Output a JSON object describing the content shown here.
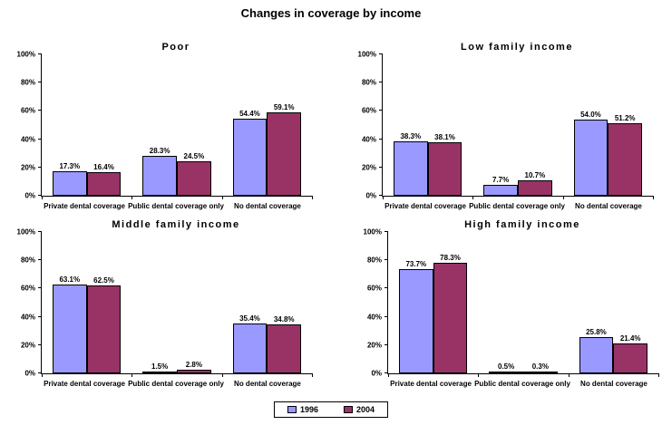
{
  "page_title": "Changes in coverage by income",
  "legend": {
    "items": [
      {
        "label": "1996",
        "color": "#9999FF"
      },
      {
        "label": "2004",
        "color": "#993366"
      }
    ]
  },
  "y_axis": {
    "tick_labels": [
      "0%",
      "20%",
      "40%",
      "60%",
      "80%",
      "100%"
    ],
    "min": 0,
    "max": 100,
    "step": 20
  },
  "chart_data": [
    {
      "type": "bar",
      "title": "Poor",
      "categories": [
        "Private dental coverage",
        "Public dental coverage only",
        "No dental coverage"
      ],
      "series": [
        {
          "name": "1996",
          "color": "#9999FF",
          "values": [
            17.3,
            28.3,
            54.4
          ]
        },
        {
          "name": "2004",
          "color": "#993366",
          "values": [
            16.4,
            24.5,
            59.1
          ]
        }
      ],
      "ylim": [
        0,
        100
      ],
      "grid": false,
      "legend_position": "bottom-shared"
    },
    {
      "type": "bar",
      "title": "Low family income",
      "categories": [
        "Private dental coverage",
        "Public dental coverage only",
        "No dental coverage"
      ],
      "series": [
        {
          "name": "1996",
          "color": "#9999FF",
          "values": [
            38.3,
            7.7,
            54.0
          ]
        },
        {
          "name": "2004",
          "color": "#993366",
          "values": [
            38.1,
            10.7,
            51.2
          ]
        }
      ],
      "ylim": [
        0,
        100
      ],
      "grid": false,
      "legend_position": "bottom-shared"
    },
    {
      "type": "bar",
      "title": "Middle family income",
      "categories": [
        "Private dental coverage",
        "Public dental coverage only",
        "No dental coverage"
      ],
      "series": [
        {
          "name": "1996",
          "color": "#9999FF",
          "values": [
            63.1,
            1.5,
            35.4
          ]
        },
        {
          "name": "2004",
          "color": "#993366",
          "values": [
            62.5,
            2.8,
            34.8
          ]
        }
      ],
      "ylim": [
        0,
        100
      ],
      "grid": false,
      "legend_position": "bottom-shared"
    },
    {
      "type": "bar",
      "title": "High family income",
      "categories": [
        "Private dental coverage",
        "Public dental coverage only",
        "No dental coverage"
      ],
      "series": [
        {
          "name": "1996",
          "color": "#9999FF",
          "values": [
            73.7,
            0.5,
            25.8
          ]
        },
        {
          "name": "2004",
          "color": "#993366",
          "values": [
            78.3,
            0.3,
            21.4
          ]
        }
      ],
      "ylim": [
        0,
        100
      ],
      "grid": false,
      "legend_position": "bottom-shared"
    }
  ]
}
